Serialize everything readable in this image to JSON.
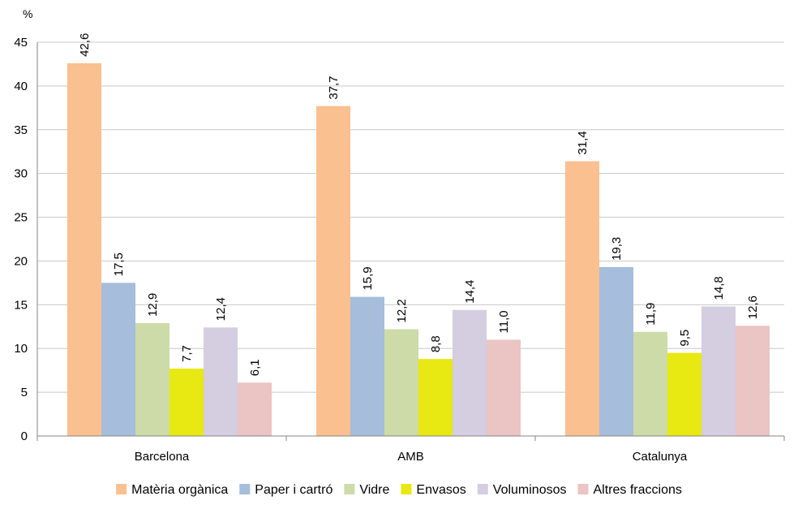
{
  "chart_data": {
    "type": "bar",
    "ylabel": "%",
    "ylim": [
      0,
      45
    ],
    "yticks": [
      "0",
      "5",
      "10",
      "15",
      "20",
      "25",
      "30",
      "35",
      "40",
      "45"
    ],
    "grid": true,
    "legend": "bottom",
    "categories": [
      "Barcelona",
      "AMB",
      "Catalunya"
    ],
    "series": [
      {
        "name": "Matèria orgànica",
        "color": "#FAC090",
        "values": [
          42.6,
          37.7,
          31.4
        ],
        "labels": [
          "42,6",
          "37,7",
          "31,4"
        ]
      },
      {
        "name": "Paper i cartró",
        "color": "#A6BDDB",
        "values": [
          17.5,
          15.9,
          19.3
        ],
        "labels": [
          "17,5",
          "15,9",
          "19,3"
        ]
      },
      {
        "name": "Vidre",
        "color": "#CDDBA8",
        "values": [
          12.9,
          12.2,
          11.9
        ],
        "labels": [
          "12,9",
          "12,2",
          "11,9"
        ]
      },
      {
        "name": "Envasos",
        "color": "#E8E812",
        "values": [
          7.7,
          8.8,
          9.5
        ],
        "labels": [
          "7,7",
          "8,8",
          "9,5"
        ]
      },
      {
        "name": "Voluminosos",
        "color": "#D5CDE0",
        "values": [
          12.4,
          14.4,
          14.8
        ],
        "labels": [
          "12,4",
          "14,4",
          "14,8"
        ]
      },
      {
        "name": "Altres fraccions",
        "color": "#EBC4C4",
        "values": [
          6.1,
          11.0,
          12.6
        ],
        "labels": [
          "6,1",
          "11,0",
          "12,6"
        ]
      }
    ]
  }
}
